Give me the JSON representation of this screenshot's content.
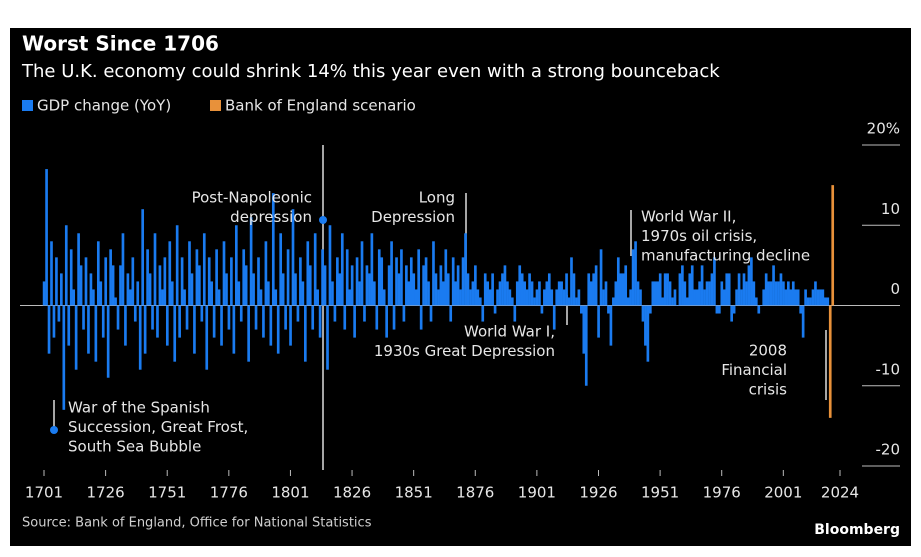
{
  "chart_data": {
    "type": "bar",
    "title": "Worst Since 1706",
    "subtitle": "The U.K. economy could shrink 14% this year even with a strong bounceback",
    "source": "Source: Bank of England, Office for National Statistics",
    "brand": "Bloomberg",
    "xlim": [
      1701,
      2024
    ],
    "xticks": [
      1701,
      1726,
      1751,
      1776,
      1801,
      1826,
      1851,
      1876,
      1901,
      1926,
      1951,
      1976,
      2001,
      2024
    ],
    "ylim": [
      -20,
      20
    ],
    "yticks": [
      {
        "value": 20,
        "label": "20%"
      },
      10,
      0,
      -10,
      -20
    ],
    "grid": true,
    "legend": "top-left",
    "series": [
      {
        "name": "GDP change (YoY)",
        "color": "#1a7bf0",
        "x": [
          1701,
          1702,
          1703,
          1704,
          1705,
          1706,
          1707,
          1708,
          1709,
          1710,
          1711,
          1712,
          1713,
          1714,
          1715,
          1716,
          1717,
          1718,
          1719,
          1720,
          1721,
          1722,
          1723,
          1724,
          1725,
          1726,
          1727,
          1728,
          1729,
          1730,
          1731,
          1732,
          1733,
          1734,
          1735,
          1736,
          1737,
          1738,
          1739,
          1740,
          1741,
          1742,
          1743,
          1744,
          1745,
          1746,
          1747,
          1748,
          1749,
          1750,
          1751,
          1752,
          1753,
          1754,
          1755,
          1756,
          1757,
          1758,
          1759,
          1760,
          1761,
          1762,
          1763,
          1764,
          1765,
          1766,
          1767,
          1768,
          1769,
          1770,
          1771,
          1772,
          1773,
          1774,
          1775,
          1776,
          1777,
          1778,
          1779,
          1780,
          1781,
          1782,
          1783,
          1784,
          1785,
          1786,
          1787,
          1788,
          1789,
          1790,
          1791,
          1792,
          1793,
          1794,
          1795,
          1796,
          1797,
          1798,
          1799,
          1800,
          1801,
          1802,
          1803,
          1804,
          1805,
          1806,
          1807,
          1808,
          1809,
          1810,
          1811,
          1812,
          1813,
          1814,
          1815,
          1816,
          1817,
          1818,
          1819,
          1820,
          1821,
          1822,
          1823,
          1824,
          1825,
          1826,
          1827,
          1828,
          1829,
          1830,
          1831,
          1832,
          1833,
          1834,
          1835,
          1836,
          1837,
          1838,
          1839,
          1840,
          1841,
          1842,
          1843,
          1844,
          1845,
          1846,
          1847,
          1848,
          1849,
          1850,
          1851,
          1852,
          1853,
          1854,
          1855,
          1856,
          1857,
          1858,
          1859,
          1860,
          1861,
          1862,
          1863,
          1864,
          1865,
          1866,
          1867,
          1868,
          1869,
          1870,
          1871,
          1872,
          1873,
          1874,
          1875,
          1876,
          1877,
          1878,
          1879,
          1880,
          1881,
          1882,
          1883,
          1884,
          1885,
          1886,
          1887,
          1888,
          1889,
          1890,
          1891,
          1892,
          1893,
          1894,
          1895,
          1896,
          1897,
          1898,
          1899,
          1900,
          1901,
          1902,
          1903,
          1904,
          1905,
          1906,
          1907,
          1908,
          1909,
          1910,
          1911,
          1912,
          1913,
          1914,
          1915,
          1916,
          1917,
          1918,
          1919,
          1920,
          1921,
          1922,
          1923,
          1924,
          1925,
          1926,
          1927,
          1928,
          1929,
          1930,
          1931,
          1932,
          1933,
          1934,
          1935,
          1936,
          1937,
          1938,
          1939,
          1940,
          1941,
          1942,
          1943,
          1944,
          1945,
          1946,
          1947,
          1948,
          1949,
          1950,
          1951,
          1952,
          1953,
          1954,
          1955,
          1956,
          1957,
          1958,
          1959,
          1960,
          1961,
          1962,
          1963,
          1964,
          1965,
          1966,
          1967,
          1968,
          1969,
          1970,
          1971,
          1972,
          1973,
          1974,
          1975,
          1976,
          1977,
          1978,
          1979,
          1980,
          1981,
          1982,
          1983,
          1984,
          1985,
          1986,
          1987,
          1988,
          1989,
          1990,
          1991,
          1992,
          1993,
          1994,
          1995,
          1996,
          1997,
          1998,
          1999,
          2000,
          2001,
          2002,
          2003,
          2004,
          2005,
          2006,
          2007,
          2008,
          2009,
          2010,
          2011,
          2012,
          2013,
          2014,
          2015,
          2016,
          2017,
          2018,
          2019
        ],
        "values": [
          3,
          17,
          -6,
          8,
          -4,
          6,
          -2,
          4,
          -13,
          10,
          -5,
          7,
          2,
          -8,
          9,
          5,
          -3,
          6,
          -6,
          4,
          2,
          -7,
          8,
          3,
          -4,
          6,
          -9,
          7,
          5,
          1,
          -3,
          5,
          9,
          -5,
          4,
          2,
          6,
          -2,
          3,
          -8,
          12,
          -6,
          7,
          4,
          -3,
          9,
          -4,
          5,
          2,
          6,
          -5,
          8,
          3,
          -7,
          10,
          -4,
          6,
          2,
          -3,
          8,
          4,
          -6,
          7,
          5,
          -2,
          9,
          -8,
          6,
          3,
          -4,
          7,
          2,
          -5,
          8,
          4,
          -3,
          6,
          -6,
          10,
          3,
          -2,
          7,
          5,
          -7,
          11,
          4,
          -3,
          6,
          2,
          -4,
          8,
          3,
          -5,
          14,
          2,
          -6,
          9,
          4,
          -3,
          7,
          -5,
          12,
          4,
          -2,
          6,
          3,
          -7,
          8,
          5,
          -3,
          9,
          2,
          -4,
          7,
          5,
          -8,
          10,
          3,
          -2,
          6,
          4,
          9,
          -3,
          7,
          2,
          5,
          -4,
          6,
          3,
          8,
          -2,
          5,
          4,
          9,
          3,
          -3,
          7,
          6,
          2,
          -4,
          5,
          8,
          -3,
          6,
          4,
          7,
          -2,
          5,
          3,
          6,
          4,
          2,
          7,
          -3,
          5,
          6,
          3,
          -2,
          8,
          4,
          2,
          5,
          3,
          7,
          4,
          -2,
          6,
          3,
          5,
          2,
          6,
          9,
          4,
          2,
          3,
          5,
          2,
          1,
          -2,
          4,
          3,
          2,
          4,
          -1,
          2,
          3,
          4,
          5,
          3,
          2,
          1,
          -2,
          3,
          5,
          4,
          3,
          2,
          4,
          3,
          1,
          2,
          3,
          -1,
          2,
          3,
          4,
          2,
          -3,
          2,
          3,
          3,
          2,
          4,
          1,
          6,
          4,
          1,
          2,
          -1,
          -6,
          -10,
          4,
          3,
          4,
          5,
          -4,
          7,
          2,
          3,
          -1,
          -5,
          1,
          3,
          6,
          4,
          4,
          5,
          1,
          2,
          7,
          8,
          3,
          2,
          -2,
          -5,
          -7,
          -1,
          3,
          3,
          3,
          4,
          1,
          4,
          4,
          3,
          1,
          2,
          0,
          4,
          5,
          3,
          1,
          4,
          5,
          2,
          2,
          3,
          5,
          2,
          3,
          3,
          4,
          6,
          -1,
          -1,
          3,
          2,
          4,
          4,
          -2,
          -1,
          2,
          4,
          2,
          4,
          3,
          5,
          6,
          3,
          1,
          -1,
          0,
          2,
          4,
          3,
          3,
          5,
          3,
          3,
          4,
          3,
          2,
          3,
          2,
          3,
          2,
          2,
          -1,
          -4,
          2,
          1,
          1,
          2,
          3,
          2,
          2,
          2,
          1,
          1
        ]
      },
      {
        "name": "Bank of England scenario",
        "color": "#e8913a",
        "x": [
          2020,
          2021
        ],
        "values": [
          -14,
          15
        ]
      }
    ],
    "annotations": [
      {
        "text": [
          "War of the Spanish",
          "Succession, Great Frost,",
          "South Sea Bubble"
        ]
      },
      {
        "text": [
          "Post-Napoleonic",
          "depression"
        ]
      },
      {
        "text": [
          "Long",
          "Depression"
        ]
      },
      {
        "text": [
          "World War I,",
          "1930s Great Depression"
        ]
      },
      {
        "text": [
          "World War II,",
          "1970s oil crisis,",
          "manufacturing decline"
        ]
      },
      {
        "text": [
          "2008",
          "Financial",
          "crisis"
        ]
      }
    ]
  }
}
